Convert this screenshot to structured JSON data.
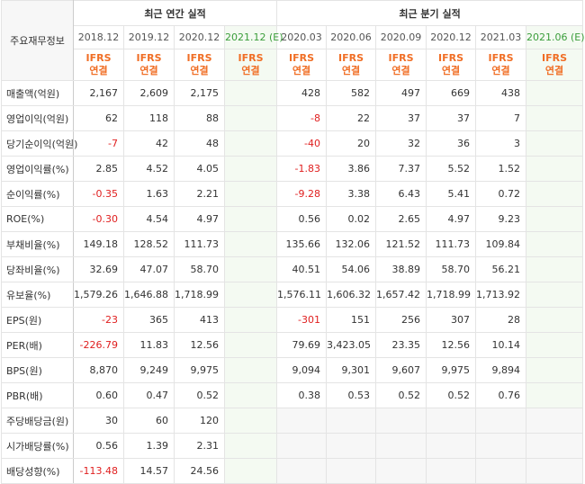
{
  "header": {
    "row_label": "주요재무정보",
    "annual_group": "최근 연간 실적",
    "quarter_group": "최근 분기 실적",
    "periods": [
      "2018.12",
      "2019.12",
      "2020.12",
      "2021.12 (E)",
      "2020.03",
      "2020.06",
      "2020.09",
      "2020.12",
      "2021.03",
      "2021.06 (E)"
    ],
    "ifrs_top": "IFRS",
    "ifrs_bottom": "연결"
  },
  "rows": [
    {
      "label": "매출액(억원)",
      "values": [
        "2,167",
        "2,609",
        "2,175",
        "",
        "428",
        "582",
        "497",
        "669",
        "438",
        ""
      ]
    },
    {
      "label": "영업이익(억원)",
      "values": [
        "62",
        "118",
        "88",
        "",
        "-8",
        "22",
        "37",
        "37",
        "7",
        ""
      ]
    },
    {
      "label": "당기순이익(억원)",
      "values": [
        "-7",
        "42",
        "48",
        "",
        "-40",
        "20",
        "32",
        "36",
        "3",
        ""
      ]
    },
    {
      "label": "영업이익률(%)",
      "values": [
        "2.85",
        "4.52",
        "4.05",
        "",
        "-1.83",
        "3.86",
        "7.37",
        "5.52",
        "1.52",
        ""
      ]
    },
    {
      "label": "순이익률(%)",
      "values": [
        "-0.35",
        "1.63",
        "2.21",
        "",
        "-9.28",
        "3.38",
        "6.43",
        "5.41",
        "0.72",
        ""
      ]
    },
    {
      "label": "ROE(%)",
      "values": [
        "-0.30",
        "4.54",
        "4.97",
        "",
        "0.56",
        "0.02",
        "2.65",
        "4.97",
        "9.23",
        ""
      ]
    },
    {
      "label": "부채비율(%)",
      "values": [
        "149.18",
        "128.52",
        "111.73",
        "",
        "135.66",
        "132.06",
        "121.52",
        "111.73",
        "109.84",
        ""
      ]
    },
    {
      "label": "당좌비율(%)",
      "values": [
        "32.69",
        "47.07",
        "58.70",
        "",
        "40.51",
        "54.06",
        "38.89",
        "58.70",
        "56.21",
        ""
      ]
    },
    {
      "label": "유보율(%)",
      "values": [
        "1,579.26",
        "1,646.88",
        "1,718.99",
        "",
        "1,576.11",
        "1,606.32",
        "1,657.42",
        "1,718.99",
        "1,713.92",
        ""
      ]
    },
    {
      "label": "EPS(원)",
      "values": [
        "-23",
        "365",
        "413",
        "",
        "-301",
        "151",
        "256",
        "307",
        "28",
        ""
      ]
    },
    {
      "label": "PER(배)",
      "values": [
        "-226.79",
        "11.83",
        "12.56",
        "",
        "79.69",
        "3,423.05",
        "23.35",
        "12.56",
        "10.14",
        ""
      ]
    },
    {
      "label": "BPS(원)",
      "values": [
        "8,870",
        "9,249",
        "9,975",
        "",
        "9,094",
        "9,301",
        "9,607",
        "9,975",
        "9,894",
        ""
      ]
    },
    {
      "label": "PBR(배)",
      "values": [
        "0.60",
        "0.47",
        "0.52",
        "",
        "0.38",
        "0.53",
        "0.52",
        "0.52",
        "0.76",
        ""
      ]
    },
    {
      "label": "주당배당금(원)",
      "values": [
        "30",
        "60",
        "120",
        "",
        "",
        "",
        "",
        "",
        "",
        ""
      ]
    },
    {
      "label": "시가배당률(%)",
      "values": [
        "0.56",
        "1.39",
        "2.31",
        "",
        "",
        "",
        "",
        "",
        "",
        ""
      ]
    },
    {
      "label": "배당성향(%)",
      "values": [
        "-113.48",
        "14.57",
        "24.56",
        "",
        "",
        "",
        "",
        "",
        "",
        ""
      ]
    }
  ]
}
